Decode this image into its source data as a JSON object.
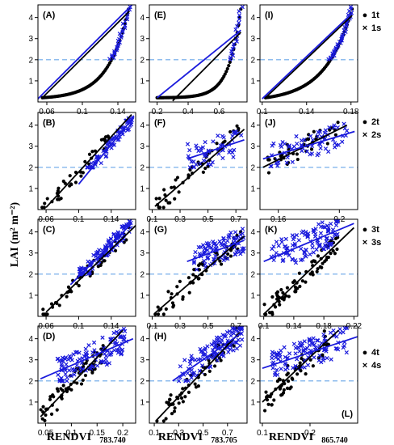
{
  "figure": {
    "ylabel": "LAI (m² m⁻²)",
    "xlabels": [
      {
        "main": "RENDVI",
        "sub": "783.740"
      },
      {
        "main": "RENDVI",
        "sub": "783.705"
      },
      {
        "main": "RENDVI",
        "sub": "865.740"
      }
    ],
    "threshold": 2,
    "colors": {
      "t": "#000000",
      "s": "#1a1adc",
      "threshold": "#6aa6e8"
    }
  },
  "legends": [
    {
      "row": 0,
      "items": [
        {
          "symbol": "●",
          "label": "1t"
        },
        {
          "symbol": "×",
          "label": "1s"
        }
      ]
    },
    {
      "row": 1,
      "items": [
        {
          "symbol": "●",
          "label": "2t"
        },
        {
          "symbol": "×",
          "label": "2s"
        }
      ]
    },
    {
      "row": 2,
      "items": [
        {
          "symbol": "●",
          "label": "3t"
        },
        {
          "symbol": "×",
          "label": "3s"
        }
      ]
    },
    {
      "row": 3,
      "items": [
        {
          "symbol": "●",
          "label": "4t"
        },
        {
          "symbol": "×",
          "label": "4s"
        }
      ]
    }
  ],
  "chart_data": [
    {
      "type": "scatter",
      "label": "(A)",
      "row": 0,
      "col": 0,
      "xlim": [
        0.05,
        0.16
      ],
      "ylim": [
        0,
        4.6
      ],
      "xticks": [
        0.06,
        0.1,
        0.14
      ],
      "yticks": [
        1,
        2,
        3,
        4
      ],
      "tline": [
        [
          0.055,
          0.2
        ],
        [
          0.153,
          4.3
        ]
      ],
      "sline": [
        [
          0.05,
          0.15
        ],
        [
          0.156,
          4.6
        ]
      ],
      "curve": {
        "x0": 0.055,
        "x1": 0.152,
        "k": 4.2
      },
      "pattern": "curve"
    },
    {
      "type": "scatter",
      "label": "(E)",
      "row": 0,
      "col": 1,
      "xlim": [
        0.15,
        0.78
      ],
      "ylim": [
        0,
        4.6
      ],
      "xticks": [
        0.2,
        0.4,
        0.6
      ],
      "yticks": [
        1,
        2,
        3,
        4
      ],
      "tline": [
        [
          0.3,
          0.05
        ],
        [
          0.74,
          3.3
        ]
      ],
      "sline": [
        [
          0.2,
          0.2
        ],
        [
          0.74,
          3.4
        ]
      ],
      "curve": {
        "x0": 0.2,
        "x1": 0.74,
        "k": 7
      },
      "pattern": "steep"
    },
    {
      "type": "scatter",
      "label": "(I)",
      "row": 0,
      "col": 2,
      "xlim": [
        0.098,
        0.186
      ],
      "ylim": [
        0,
        4.6
      ],
      "xticks": [
        0.1,
        0.14,
        0.18
      ],
      "yticks": [
        1,
        2,
        3,
        4
      ],
      "tline": [
        [
          0.103,
          0.2
        ],
        [
          0.181,
          4.1
        ]
      ],
      "sline": [
        [
          0.1,
          0.15
        ],
        [
          0.181,
          4.2
        ]
      ],
      "curve": {
        "x0": 0.103,
        "x1": 0.181,
        "k": 3.2
      },
      "pattern": "curve"
    },
    {
      "type": "scatter",
      "label": "(B)",
      "row": 1,
      "col": 0,
      "xlim": [
        0.05,
        0.17
      ],
      "ylim": [
        0,
        4.6
      ],
      "xticks": [
        0.06,
        0.1,
        0.14
      ],
      "yticks": [
        1,
        2,
        3,
        4
      ],
      "tline": [
        [
          0.06,
          0.1
        ],
        [
          0.165,
          4.5
        ]
      ],
      "sline": [
        [
          0.1,
          1.2
        ],
        [
          0.168,
          4.4
        ]
      ],
      "tpts": {
        "n": 40,
        "x": [
          0.055,
          0.14
        ],
        "spread": 0.35
      },
      "spts": {
        "n": 80,
        "x": [
          0.11,
          0.166
        ],
        "spread": 0.3
      }
    },
    {
      "type": "scatter",
      "label": "(F)",
      "row": 1,
      "col": 1,
      "xlim": [
        0.08,
        0.78
      ],
      "ylim": [
        0,
        4.6
      ],
      "xticks": [
        0.1,
        0.3,
        0.5,
        0.7
      ],
      "yticks": [
        1,
        2,
        3,
        4
      ],
      "tline": [
        [
          0.12,
          0.15
        ],
        [
          0.76,
          3.8
        ]
      ],
      "sline": [
        [
          0.35,
          2.4
        ],
        [
          0.76,
          3.3
        ]
      ],
      "tpts": {
        "n": 45,
        "x": [
          0.12,
          0.74
        ],
        "spread": 0.5
      },
      "spts": {
        "n": 55,
        "x": [
          0.35,
          0.75
        ],
        "spread": 0.7
      }
    },
    {
      "type": "scatter",
      "label": "(J)",
      "row": 1,
      "col": 2,
      "xlim": [
        0.148,
        0.212
      ],
      "ylim": [
        0,
        4.6
      ],
      "xticks": [
        0.16,
        0.2
      ],
      "yticks": [
        1,
        2,
        3,
        4
      ],
      "tline": [
        [
          0.15,
          2.0
        ],
        [
          0.205,
          4.0
        ]
      ],
      "sline": [
        [
          0.15,
          2.4
        ],
        [
          0.21,
          3.7
        ]
      ],
      "tpts": {
        "n": 40,
        "x": [
          0.152,
          0.2
        ],
        "spread": 0.5
      },
      "spts": {
        "n": 70,
        "x": [
          0.155,
          0.205
        ],
        "spread": 0.6
      }
    },
    {
      "type": "scatter",
      "label": "(C)",
      "row": 2,
      "col": 0,
      "xlim": [
        0.05,
        0.17
      ],
      "ylim": [
        0,
        4.6
      ],
      "xticks": [
        0.06,
        0.1,
        0.14
      ],
      "yticks": [
        1,
        2,
        3,
        4
      ],
      "tline": [
        [
          0.06,
          0.2
        ],
        [
          0.17,
          4.3
        ]
      ],
      "sline": [
        [
          0.09,
          1.5
        ],
        [
          0.165,
          4.4
        ]
      ],
      "tpts": {
        "n": 50,
        "x": [
          0.055,
          0.165
        ],
        "spread": 0.3
      },
      "spts": {
        "n": 110,
        "x": [
          0.1,
          0.165
        ],
        "spread": 0.35
      }
    },
    {
      "type": "scatter",
      "label": "(G)",
      "row": 2,
      "col": 1,
      "xlim": [
        0.08,
        0.78
      ],
      "ylim": [
        0,
        4.6
      ],
      "xticks": [
        0.1,
        0.3,
        0.5,
        0.7
      ],
      "yticks": [
        1,
        2,
        3,
        4
      ],
      "tline": [
        [
          0.12,
          0.15
        ],
        [
          0.76,
          3.8
        ]
      ],
      "sline": [
        [
          0.35,
          2.6
        ],
        [
          0.76,
          3.6
        ]
      ],
      "tpts": {
        "n": 60,
        "x": [
          0.12,
          0.75
        ],
        "spread": 0.5
      },
      "spts": {
        "n": 90,
        "x": [
          0.4,
          0.76
        ],
        "spread": 0.6
      }
    },
    {
      "type": "scatter",
      "label": "(K)",
      "row": 2,
      "col": 2,
      "xlim": [
        0.095,
        0.225
      ],
      "ylim": [
        0,
        4.6
      ],
      "xticks": [
        0.1,
        0.14,
        0.18,
        0.22
      ],
      "yticks": [
        1,
        2,
        3,
        4
      ],
      "tline": [
        [
          0.1,
          0.1
        ],
        [
          0.22,
          4.2
        ]
      ],
      "sline": [
        [
          0.1,
          2.6
        ],
        [
          0.22,
          4.4
        ]
      ],
      "tpts": {
        "n": 70,
        "x": [
          0.1,
          0.2
        ],
        "spread": 0.45
      },
      "spts": {
        "n": 110,
        "x": [
          0.11,
          0.2
        ],
        "spread": 0.7
      }
    },
    {
      "type": "scatter",
      "label": "(D)",
      "row": 3,
      "col": 0,
      "xlim": [
        0.035,
        0.225
      ],
      "ylim": [
        0,
        4.6
      ],
      "xticks": [
        0.05,
        0.1,
        0.15,
        0.2
      ],
      "yticks": [
        1,
        2,
        3,
        4
      ],
      "tline": [
        [
          0.04,
          0.3
        ],
        [
          0.2,
          4.4
        ]
      ],
      "sline": [
        [
          0.04,
          2.1
        ],
        [
          0.22,
          4.0
        ]
      ],
      "tpts": {
        "n": 70,
        "x": [
          0.04,
          0.17
        ],
        "spread": 0.5
      },
      "spts": {
        "n": 120,
        "x": [
          0.07,
          0.21
        ],
        "spread": 0.7
      }
    },
    {
      "type": "scatter",
      "label": "(H)",
      "row": 3,
      "col": 1,
      "xlim": [
        0.06,
        0.86
      ],
      "ylim": [
        0,
        4.6
      ],
      "xticks": [
        0.1,
        0.3,
        0.5,
        0.7
      ],
      "yticks": [
        1,
        2,
        3,
        4
      ],
      "tline": [
        [
          0.12,
          0.15
        ],
        [
          0.8,
          4.3
        ]
      ],
      "sline": [
        [
          0.25,
          2.0
        ],
        [
          0.82,
          4.3
        ]
      ],
      "tpts": {
        "n": 60,
        "x": [
          0.12,
          0.8
        ],
        "spread": 0.5
      },
      "spts": {
        "n": 110,
        "x": [
          0.3,
          0.82
        ],
        "spread": 0.6
      }
    },
    {
      "type": "scatter",
      "label": "(L)",
      "row": 3,
      "col": 2,
      "xlim": [
        0.095,
        0.3
      ],
      "ylim": [
        0,
        4.6
      ],
      "xticks": [
        0.1,
        0.2
      ],
      "yticks": [
        1,
        2,
        3,
        4
      ],
      "tline": [
        [
          0.1,
          1.0
        ],
        [
          0.26,
          4.4
        ]
      ],
      "sline": [
        [
          0.1,
          2.6
        ],
        [
          0.3,
          4.1
        ]
      ],
      "tpts": {
        "n": 60,
        "x": [
          0.1,
          0.24
        ],
        "spread": 0.6
      },
      "spts": {
        "n": 110,
        "x": [
          0.12,
          0.28
        ],
        "spread": 0.7
      }
    }
  ]
}
